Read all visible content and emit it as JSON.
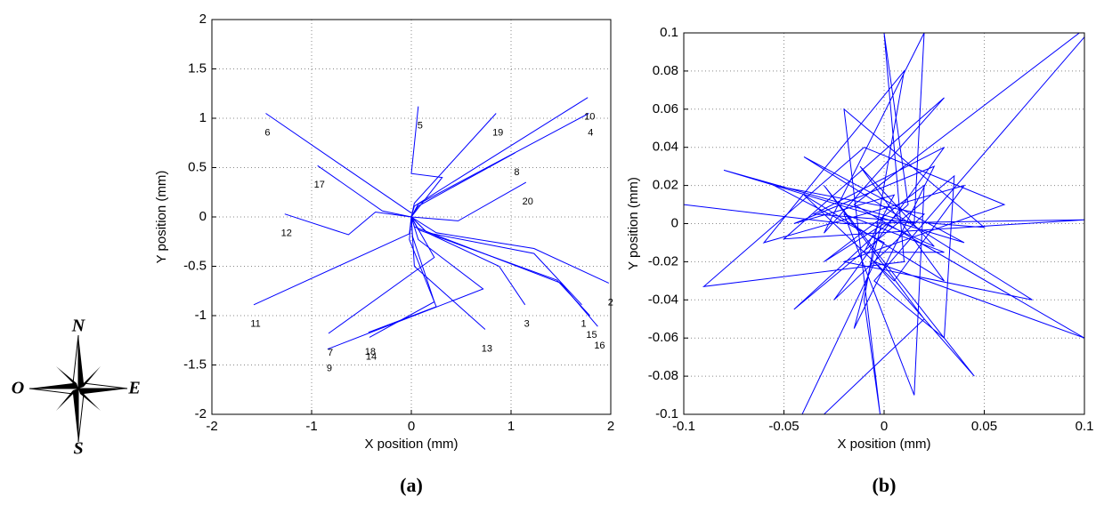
{
  "compass": {
    "north": "N",
    "east": "E",
    "south": "S",
    "west": "O"
  },
  "chart_data": [
    {
      "type": "line",
      "caption": "(a)",
      "xlabel": "X position (mm)",
      "ylabel": "Y position (mm)",
      "xlim": [
        -2,
        2
      ],
      "ylim": [
        -2,
        2
      ],
      "xticks": [
        -2,
        -1,
        0,
        1,
        2
      ],
      "yticks": [
        -2,
        -1.5,
        -1,
        -0.5,
        0,
        0.5,
        1,
        1.5,
        2
      ],
      "grid": true,
      "color": "#0000ff",
      "series": [
        {
          "name": "1",
          "x": [
            1.71,
            1.23,
            0.16,
            0
          ],
          "y": [
            -0.89,
            -0.37,
            -0.16,
            0
          ]
        },
        {
          "name": "2",
          "x": [
            1.98,
            1.23,
            0.25,
            0
          ],
          "y": [
            -0.67,
            -0.32,
            -0.16,
            0
          ]
        },
        {
          "name": "3",
          "x": [
            1.14,
            0.88,
            0.16,
            0
          ],
          "y": [
            -0.89,
            -0.5,
            -0.16,
            0
          ]
        },
        {
          "name": "4",
          "x": [
            1.78,
            0.07,
            0
          ],
          "y": [
            1.05,
            0.13,
            0
          ]
        },
        {
          "name": "5",
          "x": [
            0.07,
            0,
            0.31,
            0
          ],
          "y": [
            1.12,
            0.44,
            0.4,
            0
          ]
        },
        {
          "name": "6",
          "x": [
            -1.46,
            -0.71,
            0
          ],
          "y": [
            1.05,
            0.53,
            0.04
          ]
        },
        {
          "name": "7",
          "x": [
            -0.83,
            0.23,
            0
          ],
          "y": [
            -1.18,
            -0.41,
            0
          ]
        },
        {
          "name": "8",
          "x": [
            1.04,
            0.07,
            0
          ],
          "y": [
            0.65,
            0.11,
            0
          ]
        },
        {
          "name": "9",
          "x": [
            -0.84,
            0.72,
            0.07,
            0
          ],
          "y": [
            -1.34,
            -0.73,
            -0.23,
            0
          ]
        },
        {
          "name": "10",
          "x": [
            1.77,
            0.03,
            0
          ],
          "y": [
            1.21,
            0.11,
            0
          ]
        },
        {
          "name": "11",
          "x": [
            -1.58,
            -0.02,
            0
          ],
          "y": [
            -0.89,
            -0.17,
            0
          ]
        },
        {
          "name": "12",
          "x": [
            -1.27,
            -0.63,
            -0.36,
            0
          ],
          "y": [
            0.03,
            -0.18,
            0.05,
            0
          ]
        },
        {
          "name": "13",
          "x": [
            0.74,
            0.03,
            0
          ],
          "y": [
            -1.14,
            -0.5,
            0
          ]
        },
        {
          "name": "14",
          "x": [
            -0.42,
            0.23,
            0.01,
            0
          ],
          "y": [
            -1.22,
            -0.86,
            -0.19,
            0
          ]
        },
        {
          "name": "15",
          "x": [
            1.79,
            1.46,
            0.07,
            0
          ],
          "y": [
            -1.0,
            -0.64,
            -0.13,
            0
          ]
        },
        {
          "name": "16",
          "x": [
            1.87,
            1.5,
            0.03,
            0
          ],
          "y": [
            -1.11,
            -0.67,
            -0.1,
            0
          ]
        },
        {
          "name": "17",
          "x": [
            -0.94,
            -0.29,
            0
          ],
          "y": [
            0.52,
            0.06,
            0
          ]
        },
        {
          "name": "18",
          "x": [
            -0.43,
            0.25,
            -0.02,
            0
          ],
          "y": [
            -1.17,
            -0.91,
            -0.23,
            0
          ]
        },
        {
          "name": "19",
          "x": [
            0.85,
            0.03,
            0
          ],
          "y": [
            1.05,
            0.14,
            0
          ]
        },
        {
          "name": "20",
          "x": [
            1.15,
            0.47,
            0
          ],
          "y": [
            0.35,
            -0.04,
            0
          ]
        }
      ]
    },
    {
      "type": "line",
      "caption": "(b)",
      "xlabel": "X position (mm)",
      "ylabel": "Y position (mm)",
      "xlim": [
        -0.1,
        0.1
      ],
      "ylim": [
        -0.1,
        0.1
      ],
      "xticks": [
        -0.1,
        -0.05,
        0,
        0.05,
        0.1
      ],
      "yticks": [
        -0.1,
        -0.08,
        -0.06,
        -0.04,
        -0.02,
        0,
        0.02,
        0.04,
        0.06,
        0.08,
        0.1
      ],
      "grid": true,
      "color": "#0000ff",
      "series": [
        {
          "x": [
            -0.1,
            -0.02,
            0.1,
            -0.05,
            0.03,
            -0.03,
            0.02,
            0.015,
            -0.08,
            0.04,
            -0.04,
            0.074,
            -0.02,
            0.06,
            -0.01,
            -0.09,
            0.01,
            0.0,
            0.012,
            -0.045,
            0.035,
            0.03,
            -0.005,
            0.11,
            -0.015,
            0.1,
            -0.005,
            0.045,
            -0.03,
            0.02,
            -0.05,
            0.0,
            -0.055,
            0.02,
            -0.025,
            0.03,
            -0.035,
            0.05,
            -0.02,
            -0.002,
            -0.01,
            0.01,
            -0.06,
            0.04,
            0.005,
            -0.04,
            0.03,
            -0.012,
            0.025,
            0.0,
            -0.03,
            0.02,
            0.015,
            -0.02,
            0.03,
            -0.01,
            0.005,
            -0.045,
            0.025,
            -0.015,
            0.0
          ],
          "y": [
            0.01,
            0.0,
            0.002,
            -0.008,
            0.066,
            -0.005,
            0.1,
            0.0,
            0.028,
            -0.01,
            0.035,
            -0.04,
            -0.02,
            0.01,
            0.04,
            -0.033,
            -0.02,
            0.1,
            0.01,
            -0.045,
            0.025,
            -0.06,
            -0.03,
            0.11,
            0.01,
            -0.06,
            -0.02,
            -0.08,
            0.02,
            -0.05,
            -0.12,
            -0.01,
            0.02,
            0.005,
            -0.04,
            0.04,
            0.005,
            -0.002,
            0.06,
            -0.1,
            -0.04,
            0.08,
            -0.01,
            0.02,
            -0.03,
            0.015,
            -0.03,
            0.03,
            -0.012,
            0.0,
            -0.02,
            0.02,
            -0.09,
            0.005,
            -0.015,
            -0.015,
            0.015,
            0.0,
            0.03,
            -0.055,
            0.005
          ]
        }
      ]
    }
  ]
}
